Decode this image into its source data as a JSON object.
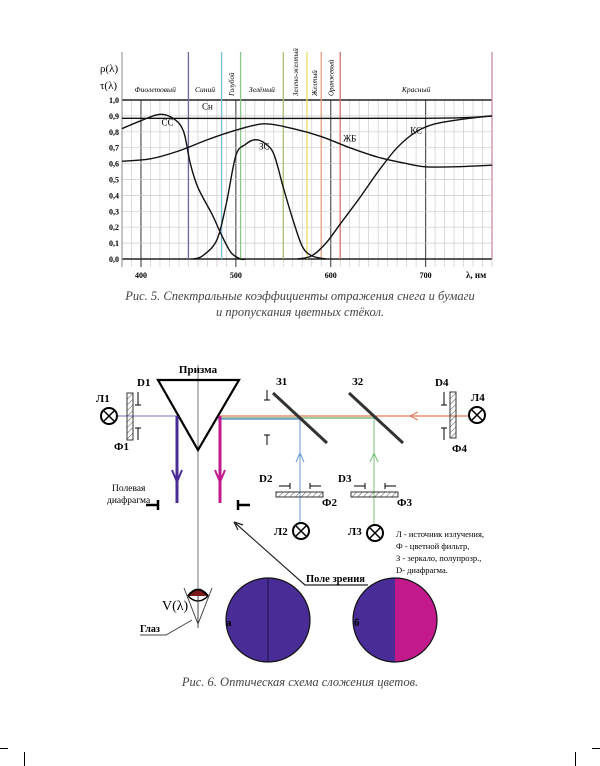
{
  "figure5": {
    "caption_line1": "Рис. 5. Спектральные коэффициенты отражения снега и бумаги",
    "caption_line2": "и пропускания цветных стёкол.",
    "chart_data": {
      "type": "line",
      "ylabel_top": "ρ(λ)",
      "ylabel_bottom": "τ(λ)",
      "xlabel": "λ, нм",
      "xlim": [
        380,
        770
      ],
      "ylim": [
        0,
        1
      ],
      "xticks": [
        400,
        500,
        600,
        700
      ],
      "yticks": [
        "0,0",
        "0,1",
        "0,2",
        "0,3",
        "0,4",
        "0,5",
        "0,6",
        "0,7",
        "0,8",
        "0,9",
        "1,0"
      ],
      "grid": true,
      "bands": [
        {
          "label": "Фиолетовый",
          "from": 380,
          "to": 450,
          "color": "#6a6aa0"
        },
        {
          "label": "Синий",
          "from": 450,
          "to": 485,
          "color": "#7ac0d8"
        },
        {
          "label": "Голубой",
          "from": 485,
          "to": 505,
          "color": "#8cc88c"
        },
        {
          "label": "Зелёный",
          "from": 505,
          "to": 550,
          "color": "#a8c070"
        },
        {
          "label": "Зелено-желтый",
          "from": 550,
          "to": 575,
          "color": "#e8e060"
        },
        {
          "label": "Желтый",
          "from": 575,
          "to": 590,
          "color": "#e8a080"
        },
        {
          "label": "Оранжевый",
          "from": 590,
          "to": 610,
          "color": "#d87070"
        },
        {
          "label": "Красный",
          "from": 610,
          "to": 770,
          "color": "#c890a0"
        }
      ],
      "series": [
        {
          "name": "Сн",
          "label_at": [
            470,
            0.94
          ],
          "points": [
            [
              380,
              0.885
            ],
            [
              700,
              0.885
            ],
            [
              770,
              0.9
            ]
          ]
        },
        {
          "name": "СС",
          "label_at": [
            428,
            0.84
          ],
          "points": [
            [
              380,
              0.82
            ],
            [
              400,
              0.87
            ],
            [
              420,
              0.91
            ],
            [
              435,
              0.88
            ],
            [
              445,
              0.8
            ],
            [
              452,
              0.6
            ],
            [
              460,
              0.45
            ],
            [
              475,
              0.28
            ],
            [
              485,
              0.15
            ],
            [
              495,
              0.04
            ],
            [
              505,
              0.0
            ],
            [
              510,
              0.0
            ]
          ]
        },
        {
          "name": "ЗС",
          "label_at": [
            530,
            0.69
          ],
          "points": [
            [
              455,
              0.0
            ],
            [
              465,
              0.02
            ],
            [
              480,
              0.12
            ],
            [
              490,
              0.35
            ],
            [
              500,
              0.65
            ],
            [
              510,
              0.72
            ],
            [
              520,
              0.75
            ],
            [
              530,
              0.73
            ],
            [
              540,
              0.66
            ],
            [
              550,
              0.45
            ],
            [
              560,
              0.25
            ],
            [
              570,
              0.08
            ],
            [
              580,
              0.02
            ],
            [
              595,
              0.0
            ]
          ]
        },
        {
          "name": "ЖБ",
          "label_at": [
            620,
            0.74
          ],
          "points": [
            [
              380,
              0.615
            ],
            [
              410,
              0.63
            ],
            [
              440,
              0.68
            ],
            [
              470,
              0.75
            ],
            [
              500,
              0.81
            ],
            [
              530,
              0.85
            ],
            [
              560,
              0.82
            ],
            [
              590,
              0.77
            ],
            [
              620,
              0.7
            ],
            [
              650,
              0.64
            ],
            [
              680,
              0.6
            ],
            [
              700,
              0.58
            ],
            [
              730,
              0.58
            ],
            [
              770,
              0.59
            ]
          ]
        },
        {
          "name": "КС",
          "label_at": [
            690,
            0.79
          ],
          "points": [
            [
              565,
              0.0
            ],
            [
              580,
              0.02
            ],
            [
              595,
              0.1
            ],
            [
              610,
              0.22
            ],
            [
              630,
              0.38
            ],
            [
              650,
              0.55
            ],
            [
              670,
              0.7
            ],
            [
              690,
              0.8
            ],
            [
              710,
              0.85
            ],
            [
              740,
              0.88
            ],
            [
              770,
              0.9
            ]
          ]
        }
      ]
    }
  },
  "figure6": {
    "caption": "Рис. 6. Оптическая схема сложения цветов.",
    "labels": {
      "prism": "Призма",
      "l1": "Л1",
      "l2": "Л2",
      "l3": "Л3",
      "l4": "Л4",
      "d1": "D1",
      "d2": "D2",
      "d3": "D3",
      "d4": "D4",
      "f1": "Ф1",
      "f2": "Ф2",
      "f3": "Ф3",
      "f4": "Ф4",
      "z1": "З1",
      "z2": "З2",
      "field_diaphragm_1": "Полевая",
      "field_diaphragm_2": "диафрагма",
      "field_of_view": "Поле зрения",
      "v_lambda": "V(λ)",
      "eye": "Глаз",
      "circle_a": "а",
      "circle_b": "б"
    },
    "legend": [
      "Л - источник излучения,",
      "Ф - цветной фильтр,",
      "З - зеркало, полупрозр.,",
      "D- диафрагма."
    ],
    "colors": {
      "purple": "#4a2c96",
      "magenta": "#c21a8c",
      "blue_beam": "#6a9ad0",
      "green_beam": "#7ac07a",
      "red_beam": "#e07a5a"
    }
  }
}
